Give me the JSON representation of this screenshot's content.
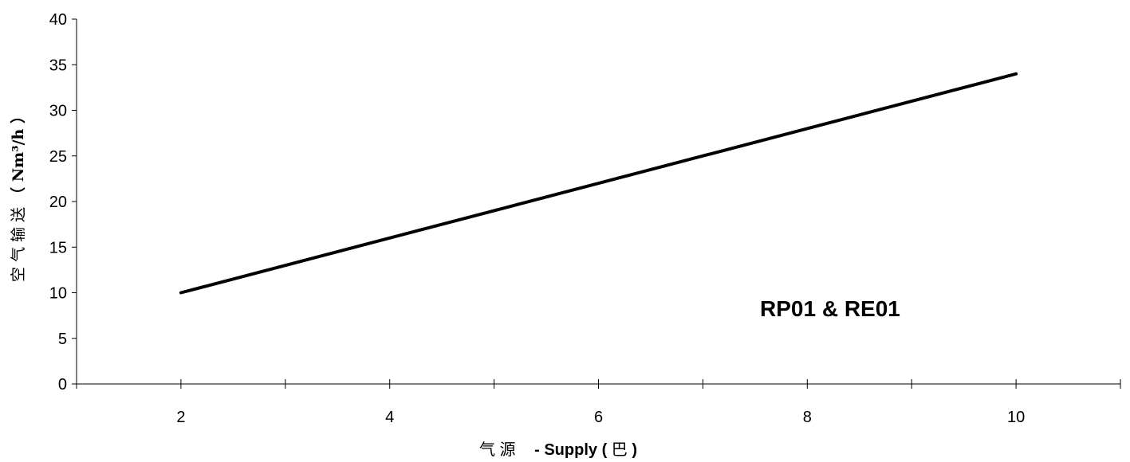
{
  "chart_data": {
    "type": "line",
    "title": "",
    "xlabel_cn": "气 源",
    "xlabel_en": " - Supply ( ",
    "xlabel_unit": "巴",
    "xlabel_close": " )",
    "ylabel_cn": "空 气 输 送",
    "ylabel_unit": "（ Nm³/h ）",
    "xlim": [
      1,
      11
    ],
    "ylim": [
      0,
      40
    ],
    "x_tick_labels": [
      2,
      4,
      6,
      8,
      10
    ],
    "x_minor_ticks": [
      1,
      2,
      3,
      4,
      5,
      6,
      7,
      8,
      9,
      10,
      11
    ],
    "y_ticks": [
      0,
      5,
      10,
      15,
      20,
      25,
      30,
      35,
      40
    ],
    "grid": false,
    "series": [
      {
        "x": [
          2,
          10
        ],
        "y": [
          10,
          34
        ]
      }
    ],
    "annotation": "RP01 & RE01"
  }
}
